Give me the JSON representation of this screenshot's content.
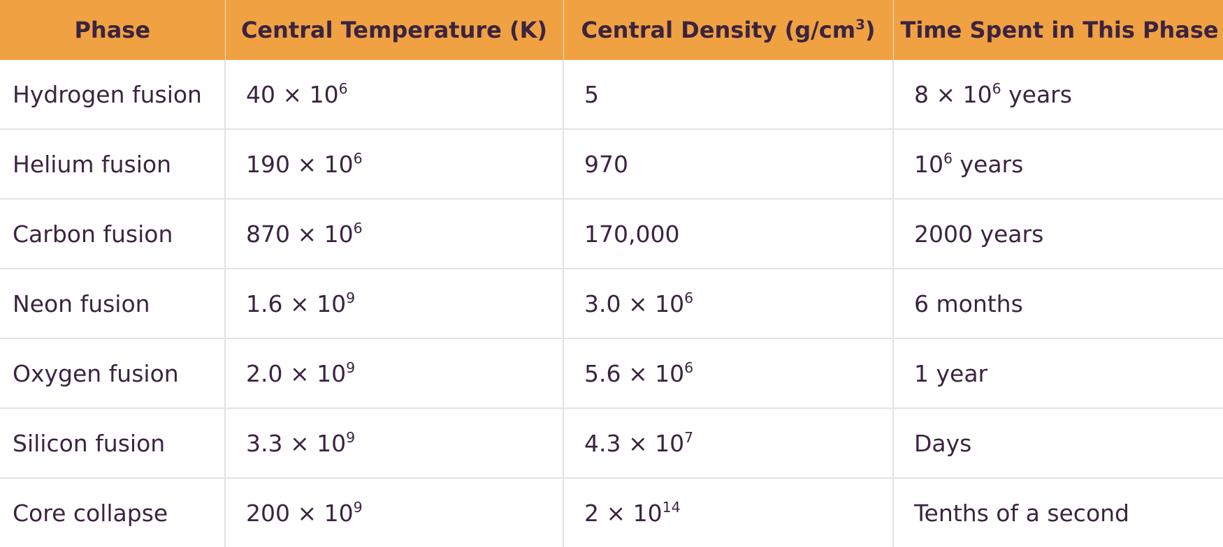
{
  "table": {
    "headers": {
      "phase": "Phase",
      "temp": "Central Temperature (K)",
      "density_prefix": "Central Density (g/cm",
      "density_exp": "3",
      "density_suffix": ")",
      "time": "Time Spent in This Phase"
    },
    "rows": [
      {
        "phase": "Hydrogen fusion",
        "temp": {
          "base": "40 × 10",
          "exp": "6"
        },
        "density": {
          "base": "5",
          "exp": ""
        },
        "time": {
          "pre": "8 × 10",
          "exp": "6",
          "post": " years"
        }
      },
      {
        "phase": "Helium fusion",
        "temp": {
          "base": "190 × 10",
          "exp": "6"
        },
        "density": {
          "base": "970",
          "exp": ""
        },
        "time": {
          "pre": "10",
          "exp": "6",
          "post": " years"
        }
      },
      {
        "phase": "Carbon fusion",
        "temp": {
          "base": "870 × 10",
          "exp": "6"
        },
        "density": {
          "base": "170,000",
          "exp": ""
        },
        "time": {
          "pre": "2000 years",
          "exp": "",
          "post": ""
        }
      },
      {
        "phase": "Neon fusion",
        "temp": {
          "base": "1.6 × 10",
          "exp": "9"
        },
        "density": {
          "base": "3.0 × 10",
          "exp": "6"
        },
        "time": {
          "pre": "6 months",
          "exp": "",
          "post": ""
        }
      },
      {
        "phase": "Oxygen fusion",
        "temp": {
          "base": "2.0 × 10",
          "exp": "9"
        },
        "density": {
          "base": "5.6 × 10",
          "exp": "6"
        },
        "time": {
          "pre": "1 year",
          "exp": "",
          "post": ""
        }
      },
      {
        "phase": "Silicon fusion",
        "temp": {
          "base": "3.3 × 10",
          "exp": "9"
        },
        "density": {
          "base": "4.3 × 10",
          "exp": "7"
        },
        "time": {
          "pre": "Days",
          "exp": "",
          "post": ""
        }
      },
      {
        "phase": "Core collapse",
        "temp": {
          "base": "200 × 10",
          "exp": "9"
        },
        "density": {
          "base": "2 × 10",
          "exp": "14"
        },
        "time": {
          "pre": "Tenths of a second",
          "exp": "",
          "post": ""
        }
      }
    ]
  }
}
